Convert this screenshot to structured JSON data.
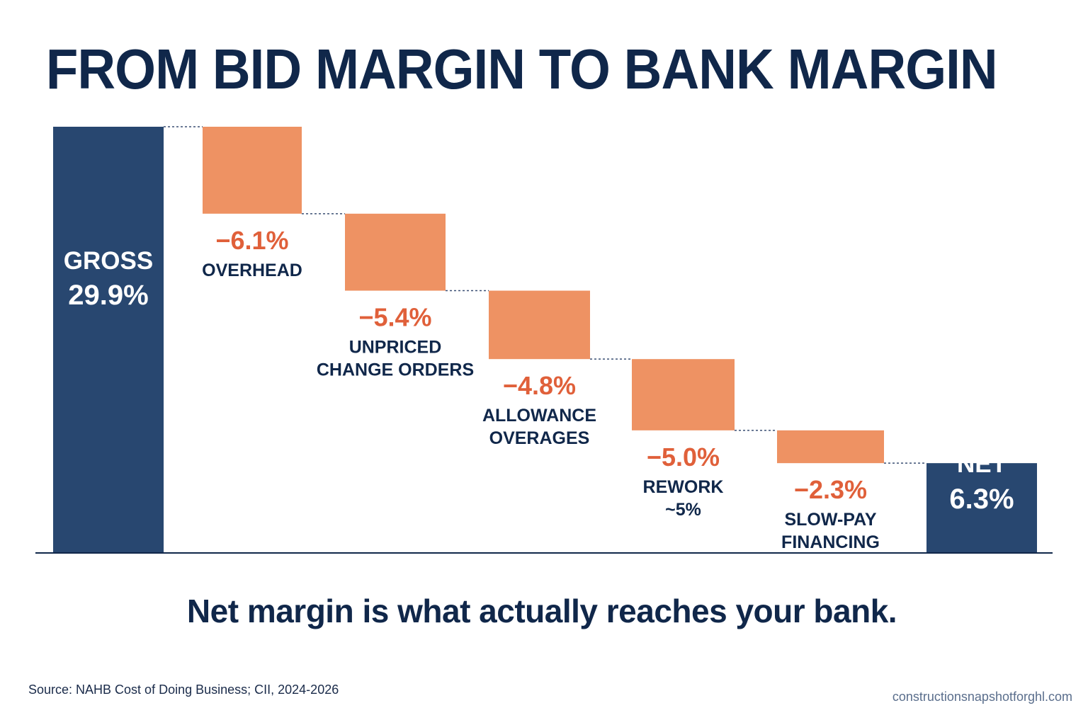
{
  "title": "FROM BID MARGIN TO BANK MARGIN",
  "tagline": "Net margin is what actually reaches your bank.",
  "source": "Source: NAHB Cost of Doing Business; CII, 2024-2026",
  "site": "constructionsnapshotforghl.com",
  "colors": {
    "total": "#284770",
    "decrease": "#ee9263",
    "value_text": "#e0603a",
    "text": "#10274a"
  },
  "chart_data": {
    "type": "bar",
    "subtype": "waterfall",
    "unit": "%",
    "start": {
      "label": "GROSS",
      "value": 29.9,
      "display": "29.9%"
    },
    "steps": [
      {
        "label_lines": [
          "OVERHEAD"
        ],
        "value": -6.1,
        "display": "−6.1%"
      },
      {
        "label_lines": [
          "UNPRICED",
          "CHANGE ORDERS"
        ],
        "value": -5.4,
        "display": "−5.4%"
      },
      {
        "label_lines": [
          "ALLOWANCE",
          "OVERAGES"
        ],
        "value": -4.8,
        "display": "−4.8%"
      },
      {
        "label_lines": [
          "REWORK",
          "~5%"
        ],
        "value": -5.0,
        "display": "−5.0%"
      },
      {
        "label_lines": [
          "SLOW-PAY",
          "FINANCING"
        ],
        "value": -2.3,
        "display": "−2.3%"
      }
    ],
    "end": {
      "label": "NET",
      "value": 6.3,
      "display": "6.3%"
    },
    "ylim": [
      0,
      29.9
    ],
    "grid": false,
    "legend": "none",
    "connectors": "dotted"
  }
}
